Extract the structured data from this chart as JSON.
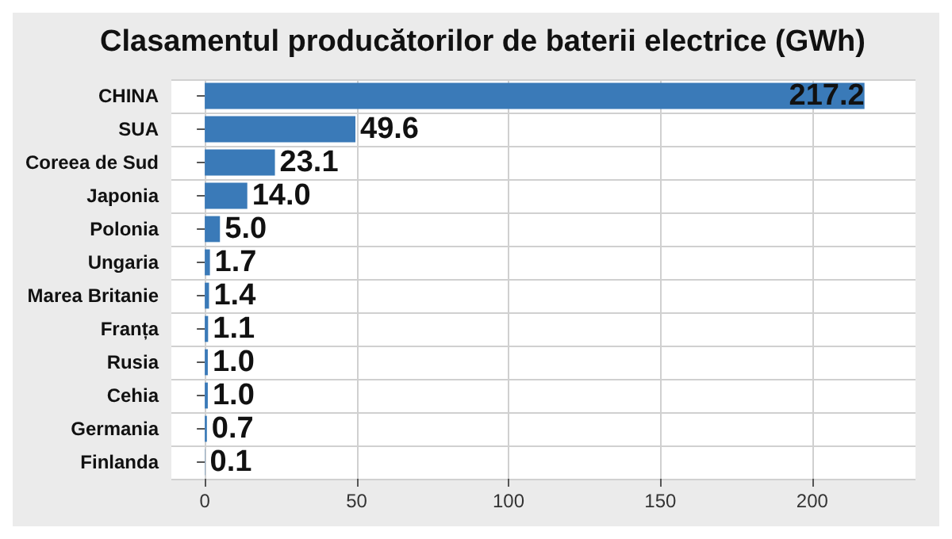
{
  "chart_data": {
    "type": "bar",
    "orientation": "horizontal",
    "title": "Clasamentul producătorilor de baterii electrice (GWh)",
    "categories": [
      "CHINA",
      "SUA",
      "Coreea de Sud",
      "Japonia",
      "Polonia",
      "Ungaria",
      "Marea Britanie",
      "Franța",
      "Rusia",
      "Cehia",
      "Germania",
      "Finlanda"
    ],
    "values": [
      217.2,
      49.6,
      23.1,
      14.0,
      5.0,
      1.7,
      1.4,
      1.1,
      1.0,
      1.0,
      0.7,
      0.1
    ],
    "value_labels": [
      "217.2",
      "49.6",
      "23.1",
      "14.0",
      "5.0",
      "1.7",
      "1.4",
      "1.1",
      "1.0",
      "1.0",
      "0.7",
      "0.1"
    ],
    "color": "#3a7ab8",
    "xlim": [
      -11,
      234
    ],
    "xticks": [
      0,
      50,
      100,
      150,
      200
    ],
    "grid": true
  }
}
